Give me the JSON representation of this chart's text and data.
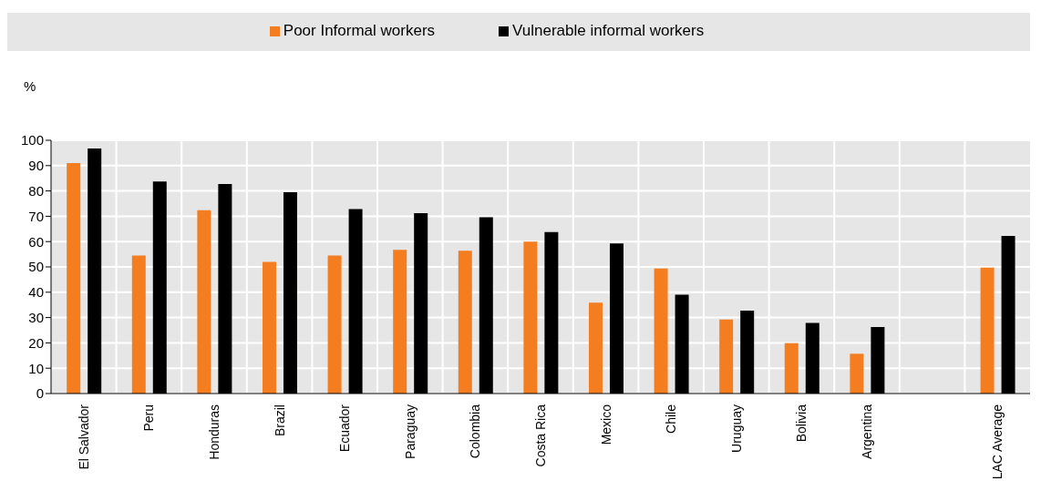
{
  "chart_data": {
    "type": "bar",
    "ylabel": "%",
    "categories": [
      "El Salvador",
      "Peru",
      "Honduras",
      "Brazil",
      "Ecuador",
      "Paraguay",
      "Colombia",
      "Costa Rica",
      "Mexico",
      "Chile",
      "Uruguay",
      "Bolivia",
      "Argentina",
      null,
      "LAC Average"
    ],
    "series": [
      {
        "name": "Poor Informal workers",
        "color": "#f47d20",
        "values": [
          91,
          54.5,
          72.4,
          52,
          54.5,
          56.7,
          56.4,
          60,
          35.9,
          49.4,
          29.2,
          19.9,
          15.7,
          null,
          49.7
        ]
      },
      {
        "name": "Vulnerable informal workers",
        "color": "#000000",
        "values": [
          96.8,
          83.7,
          82.7,
          79.5,
          72.8,
          71.2,
          69.6,
          63.8,
          59.3,
          39,
          32.7,
          27.9,
          26.3,
          null,
          62.2
        ]
      }
    ],
    "ylim": [
      0,
      100
    ],
    "yticks": [
      0,
      10,
      20,
      30,
      40,
      50,
      60,
      70,
      80,
      90,
      100
    ],
    "grid": true,
    "legend": "top"
  }
}
